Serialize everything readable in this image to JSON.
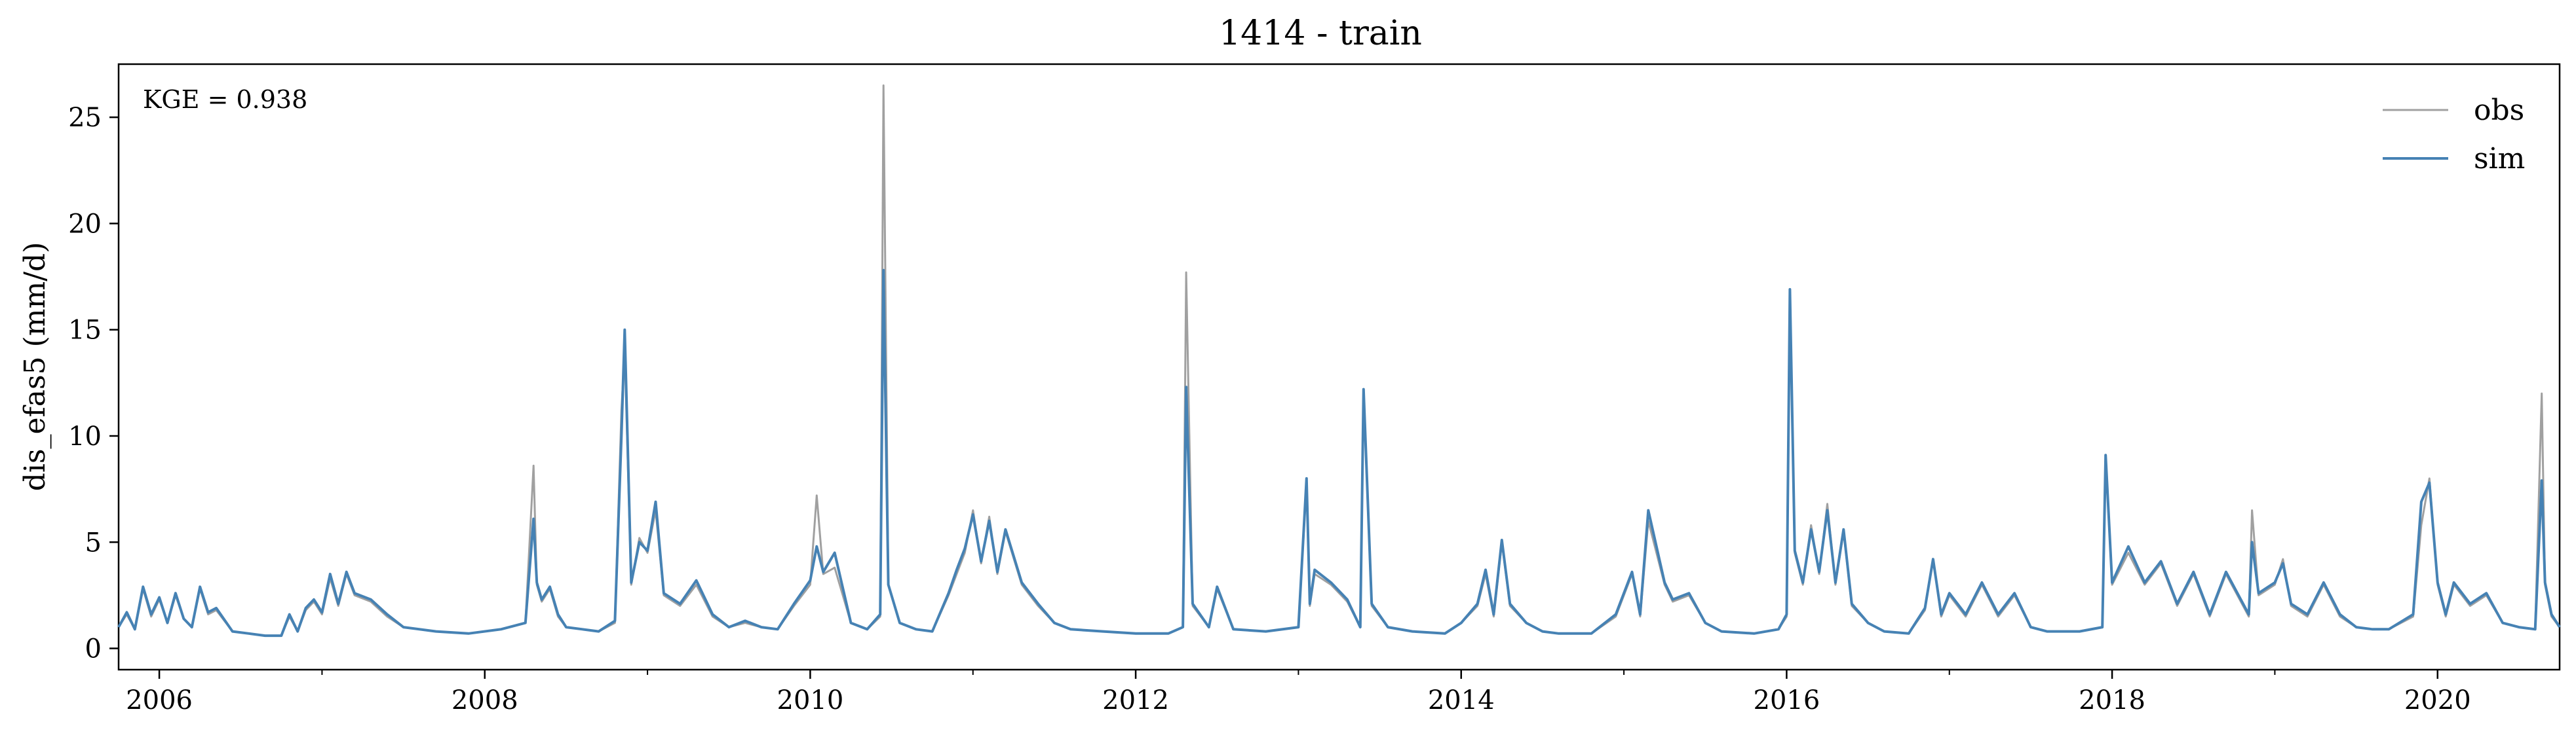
{
  "chart_data": {
    "type": "line",
    "title": "1414 - train",
    "xlabel": "",
    "ylabel": "dis_efas5 (mm/d)",
    "annotation": "KGE = 0.938",
    "legend_position": "top-right",
    "grid": false,
    "xlim": [
      2005.75,
      2020.75
    ],
    "ylim": [
      -1,
      27.5
    ],
    "x_ticks": [
      2006,
      2008,
      2010,
      2012,
      2014,
      2016,
      2018,
      2020
    ],
    "x_tick_labels": [
      "2006",
      "2008",
      "2010",
      "2012",
      "2014",
      "2016",
      "2018",
      "2020"
    ],
    "y_ticks": [
      0,
      5,
      10,
      15,
      20,
      25
    ],
    "y_tick_labels": [
      "0",
      "5",
      "10",
      "15",
      "20",
      "25"
    ],
    "series": [
      {
        "name": "obs",
        "color": "#a0a0a0",
        "x": [
          2005.75,
          2005.8,
          2005.85,
          2005.9,
          2005.95,
          2006.0,
          2006.05,
          2006.1,
          2006.15,
          2006.2,
          2006.25,
          2006.3,
          2006.35,
          2006.45,
          2006.55,
          2006.65,
          2006.75,
          2006.8,
          2006.85,
          2006.9,
          2006.95,
          2007.0,
          2007.05,
          2007.1,
          2007.15,
          2007.2,
          2007.3,
          2007.4,
          2007.5,
          2007.7,
          2007.9,
          2008.1,
          2008.25,
          2008.3,
          2008.32,
          2008.35,
          2008.4,
          2008.45,
          2008.5,
          2008.6,
          2008.7,
          2008.8,
          2008.84,
          2008.86,
          2008.9,
          2008.95,
          2009.0,
          2009.05,
          2009.1,
          2009.2,
          2009.3,
          2009.4,
          2009.5,
          2009.6,
          2009.7,
          2009.8,
          2009.9,
          2010.0,
          2010.04,
          2010.08,
          2010.15,
          2010.25,
          2010.35,
          2010.43,
          2010.45,
          2010.48,
          2010.55,
          2010.65,
          2010.75,
          2010.85,
          2010.9,
          2010.95,
          2011.0,
          2011.05,
          2011.1,
          2011.15,
          2011.2,
          2011.3,
          2011.4,
          2011.5,
          2011.6,
          2011.8,
          2012.0,
          2012.2,
          2012.29,
          2012.31,
          2012.35,
          2012.45,
          2012.5,
          2012.6,
          2012.8,
          2013.0,
          2013.05,
          2013.07,
          2013.1,
          2013.2,
          2013.3,
          2013.38,
          2013.4,
          2013.45,
          2013.55,
          2013.7,
          2013.9,
          2014.0,
          2014.1,
          2014.15,
          2014.2,
          2014.25,
          2014.3,
          2014.4,
          2014.5,
          2014.6,
          2014.8,
          2014.95,
          2015.05,
          2015.1,
          2015.15,
          2015.25,
          2015.3,
          2015.4,
          2015.5,
          2015.6,
          2015.8,
          2015.95,
          2016.0,
          2016.02,
          2016.05,
          2016.1,
          2016.15,
          2016.2,
          2016.25,
          2016.3,
          2016.35,
          2016.4,
          2016.5,
          2016.6,
          2016.75,
          2016.85,
          2016.9,
          2016.95,
          2017.0,
          2017.1,
          2017.2,
          2017.3,
          2017.4,
          2017.5,
          2017.6,
          2017.8,
          2017.94,
          2017.96,
          2018.0,
          2018.1,
          2018.2,
          2018.3,
          2018.4,
          2018.5,
          2018.6,
          2018.7,
          2018.84,
          2018.86,
          2018.9,
          2019.0,
          2019.05,
          2019.1,
          2019.2,
          2019.3,
          2019.4,
          2019.5,
          2019.6,
          2019.7,
          2019.85,
          2019.9,
          2019.95,
          2020.0,
          2020.05,
          2020.1,
          2020.2,
          2020.3,
          2020.4,
          2020.5,
          2020.6,
          2020.64,
          2020.66,
          2020.7,
          2020.75
        ],
        "y": [
          1.0,
          1.6,
          0.9,
          2.8,
          1.5,
          2.3,
          1.2,
          2.5,
          1.4,
          1.0,
          2.8,
          1.6,
          1.8,
          0.8,
          0.7,
          0.6,
          0.6,
          1.5,
          0.8,
          1.8,
          2.2,
          1.6,
          3.3,
          2.0,
          3.5,
          2.5,
          2.2,
          1.5,
          1.0,
          0.8,
          0.7,
          0.9,
          1.2,
          8.6,
          3.0,
          2.2,
          2.8,
          1.5,
          1.0,
          0.9,
          0.8,
          1.2,
          11.2,
          14.0,
          3.0,
          5.2,
          4.5,
          6.5,
          2.5,
          2.0,
          3.0,
          1.5,
          1.0,
          1.2,
          1.0,
          0.9,
          2.0,
          3.0,
          7.2,
          3.5,
          3.8,
          1.2,
          0.9,
          1.5,
          26.5,
          3.0,
          1.2,
          0.9,
          0.8,
          2.5,
          3.5,
          4.5,
          6.5,
          4.0,
          6.2,
          3.5,
          5.5,
          3.0,
          2.0,
          1.2,
          0.9,
          0.8,
          0.7,
          0.7,
          1.0,
          17.7,
          2.0,
          1.0,
          2.8,
          0.9,
          0.8,
          1.0,
          7.8,
          2.0,
          3.5,
          3.0,
          2.2,
          1.0,
          12.0,
          2.0,
          1.0,
          0.8,
          0.7,
          1.2,
          2.0,
          3.5,
          1.5,
          5.0,
          2.0,
          1.2,
          0.8,
          0.7,
          0.7,
          1.5,
          3.5,
          1.5,
          6.0,
          3.0,
          2.2,
          2.5,
          1.2,
          0.8,
          0.7,
          0.9,
          1.5,
          16.8,
          4.5,
          3.0,
          5.8,
          3.5,
          6.8,
          3.0,
          5.5,
          2.0,
          1.2,
          0.8,
          0.7,
          1.8,
          4.2,
          1.5,
          2.5,
          1.5,
          3.0,
          1.5,
          2.5,
          1.0,
          0.8,
          0.8,
          1.0,
          9.0,
          3.0,
          4.5,
          3.0,
          4.0,
          2.0,
          3.5,
          1.5,
          3.5,
          1.5,
          6.5,
          2.5,
          3.0,
          4.2,
          2.0,
          1.5,
          3.0,
          1.5,
          1.0,
          0.9,
          0.9,
          1.5,
          5.8,
          8.0,
          3.0,
          1.5,
          3.0,
          2.0,
          2.5,
          1.2,
          1.0,
          0.9,
          12.0,
          3.0,
          1.5,
          1.0
        ]
      },
      {
        "name": "sim",
        "color": "#4682b4",
        "x": [
          2005.75,
          2005.8,
          2005.85,
          2005.9,
          2005.95,
          2006.0,
          2006.05,
          2006.1,
          2006.15,
          2006.2,
          2006.25,
          2006.3,
          2006.35,
          2006.45,
          2006.55,
          2006.65,
          2006.75,
          2006.8,
          2006.85,
          2006.9,
          2006.95,
          2007.0,
          2007.05,
          2007.1,
          2007.15,
          2007.2,
          2007.3,
          2007.4,
          2007.5,
          2007.7,
          2007.9,
          2008.1,
          2008.25,
          2008.3,
          2008.32,
          2008.35,
          2008.4,
          2008.45,
          2008.5,
          2008.6,
          2008.7,
          2008.8,
          2008.84,
          2008.86,
          2008.9,
          2008.95,
          2009.0,
          2009.05,
          2009.1,
          2009.2,
          2009.3,
          2009.4,
          2009.5,
          2009.6,
          2009.7,
          2009.8,
          2009.9,
          2010.0,
          2010.04,
          2010.08,
          2010.15,
          2010.25,
          2010.35,
          2010.43,
          2010.45,
          2010.48,
          2010.55,
          2010.65,
          2010.75,
          2010.85,
          2010.9,
          2010.95,
          2011.0,
          2011.05,
          2011.1,
          2011.15,
          2011.2,
          2011.3,
          2011.4,
          2011.5,
          2011.6,
          2011.8,
          2012.0,
          2012.2,
          2012.29,
          2012.31,
          2012.35,
          2012.45,
          2012.5,
          2012.6,
          2012.8,
          2013.0,
          2013.05,
          2013.07,
          2013.1,
          2013.2,
          2013.3,
          2013.38,
          2013.4,
          2013.45,
          2013.55,
          2013.7,
          2013.9,
          2014.0,
          2014.1,
          2014.15,
          2014.2,
          2014.25,
          2014.3,
          2014.4,
          2014.5,
          2014.6,
          2014.8,
          2014.95,
          2015.05,
          2015.1,
          2015.15,
          2015.25,
          2015.3,
          2015.4,
          2015.5,
          2015.6,
          2015.8,
          2015.95,
          2016.0,
          2016.02,
          2016.05,
          2016.1,
          2016.15,
          2016.2,
          2016.25,
          2016.3,
          2016.35,
          2016.4,
          2016.5,
          2016.6,
          2016.75,
          2016.85,
          2016.9,
          2016.95,
          2017.0,
          2017.1,
          2017.2,
          2017.3,
          2017.4,
          2017.5,
          2017.6,
          2017.8,
          2017.94,
          2017.96,
          2018.0,
          2018.1,
          2018.2,
          2018.3,
          2018.4,
          2018.5,
          2018.6,
          2018.7,
          2018.84,
          2018.86,
          2018.9,
          2019.0,
          2019.05,
          2019.1,
          2019.2,
          2019.3,
          2019.4,
          2019.5,
          2019.6,
          2019.7,
          2019.85,
          2019.9,
          2019.95,
          2020.0,
          2020.05,
          2020.1,
          2020.2,
          2020.3,
          2020.4,
          2020.5,
          2020.6,
          2020.64,
          2020.66,
          2020.7,
          2020.75
        ],
        "y": [
          1.0,
          1.7,
          0.9,
          2.9,
          1.6,
          2.4,
          1.2,
          2.6,
          1.4,
          1.0,
          2.9,
          1.7,
          1.9,
          0.8,
          0.7,
          0.6,
          0.6,
          1.6,
          0.8,
          1.9,
          2.3,
          1.7,
          3.5,
          2.1,
          3.6,
          2.6,
          2.3,
          1.6,
          1.0,
          0.8,
          0.7,
          0.9,
          1.2,
          6.1,
          3.1,
          2.3,
          2.9,
          1.6,
          1.0,
          0.9,
          0.8,
          1.3,
          10.0,
          15.0,
          3.1,
          5.0,
          4.6,
          6.9,
          2.6,
          2.1,
          3.2,
          1.6,
          1.0,
          1.3,
          1.0,
          0.9,
          2.1,
          3.2,
          4.8,
          3.6,
          4.5,
          1.2,
          0.9,
          1.6,
          17.8,
          3.0,
          1.2,
          0.9,
          0.8,
          2.6,
          3.7,
          4.7,
          6.3,
          4.1,
          6.0,
          3.6,
          5.6,
          3.1,
          2.1,
          1.2,
          0.9,
          0.8,
          0.7,
          0.7,
          1.0,
          12.3,
          2.1,
          1.0,
          2.9,
          0.9,
          0.8,
          1.0,
          8.0,
          2.1,
          3.7,
          3.1,
          2.3,
          1.0,
          12.2,
          2.1,
          1.0,
          0.8,
          0.7,
          1.2,
          2.1,
          3.7,
          1.6,
          5.1,
          2.1,
          1.2,
          0.8,
          0.7,
          0.7,
          1.6,
          3.6,
          1.6,
          6.5,
          3.1,
          2.3,
          2.6,
          1.2,
          0.8,
          0.7,
          0.9,
          1.6,
          16.9,
          4.6,
          3.1,
          5.6,
          3.6,
          6.5,
          3.1,
          5.6,
          2.1,
          1.2,
          0.8,
          0.7,
          1.9,
          4.2,
          1.6,
          2.6,
          1.6,
          3.1,
          1.6,
          2.6,
          1.0,
          0.8,
          0.8,
          1.0,
          9.1,
          3.1,
          4.8,
          3.1,
          4.1,
          2.1,
          3.6,
          1.6,
          3.6,
          1.6,
          5.0,
          2.6,
          3.1,
          4.0,
          2.1,
          1.6,
          3.1,
          1.6,
          1.0,
          0.9,
          0.9,
          1.6,
          6.9,
          7.8,
          3.1,
          1.6,
          3.1,
          2.1,
          2.6,
          1.2,
          1.0,
          0.9,
          7.9,
          3.1,
          1.6,
          1.0
        ]
      }
    ]
  }
}
